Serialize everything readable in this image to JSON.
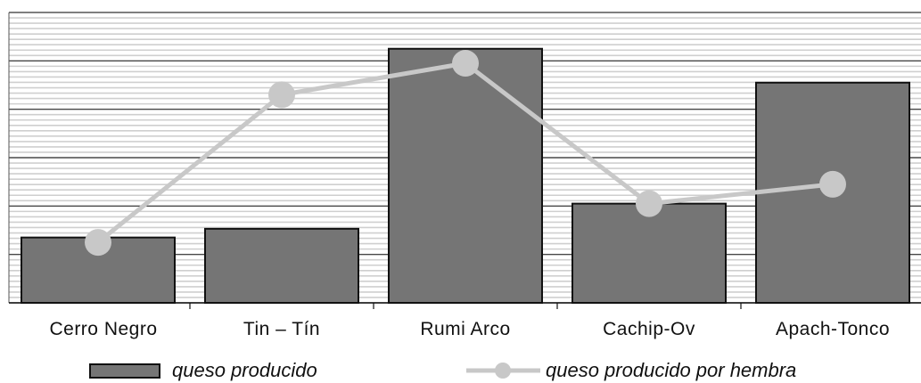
{
  "chart_data": {
    "type": "bar",
    "categories": [
      "Cerro Negro",
      "Tin – Tín",
      "Rumi Arco",
      "Cachip-Ov",
      "Apach-Tonco"
    ],
    "series": [
      {
        "name": "queso producido",
        "type": "bar",
        "values": [
          1.35,
          1.53,
          5.25,
          2.05,
          4.55
        ]
      },
      {
        "name": "queso producido por hembra",
        "type": "line",
        "values": [
          1.25,
          4.3,
          4.95,
          2.05,
          2.45
        ]
      }
    ],
    "ylim": [
      0,
      6
    ],
    "grid": true,
    "legend": "bottom",
    "colors": {
      "bar": "#757575",
      "bar_outline": "#111111",
      "line": "#c8c8c8",
      "grid_major": "#333333",
      "grid_minor": "#cfcfcf"
    }
  }
}
